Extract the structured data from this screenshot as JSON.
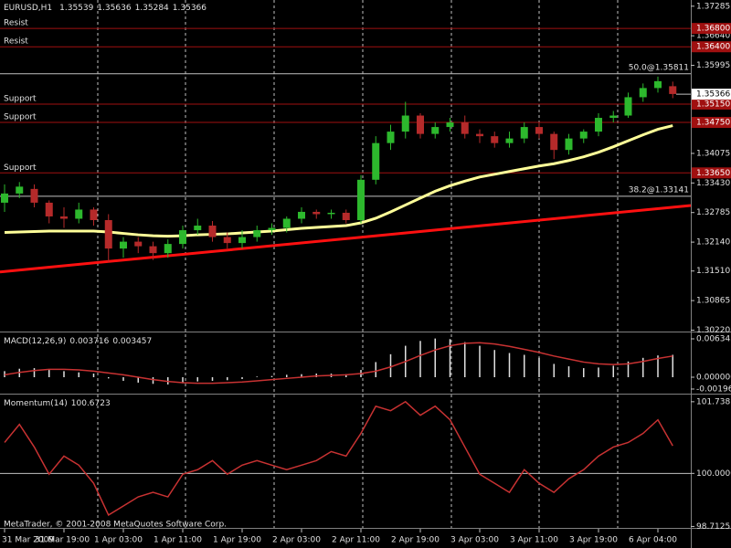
{
  "chart_data": {
    "type": "candlestick",
    "symbol": "EURUSD,H1",
    "quote": [
      1.35539,
      1.35636,
      1.35284,
      1.35366
    ],
    "categories": [
      "31 Mar 2009",
      null,
      null,
      null,
      "31 Mar 19:00",
      null,
      null,
      null,
      "1 Apr 03:00",
      null,
      null,
      null,
      "1 Apr 11:00",
      null,
      null,
      null,
      "1 Apr 19:00",
      null,
      null,
      null,
      "2 Apr 03:00",
      null,
      null,
      null,
      "2 Apr 11:00",
      null,
      null,
      null,
      "2 Apr 19:00",
      null,
      null,
      null,
      "3 Apr 03:00",
      null,
      null,
      null,
      "3 Apr 11:00",
      null,
      null,
      null,
      "3 Apr 19:00",
      null,
      null,
      null,
      "6 Apr 04:00",
      null
    ],
    "open": [
      1.33,
      1.332,
      1.333,
      1.33,
      1.327,
      1.3265,
      1.3285,
      1.3262,
      1.32,
      1.3215,
      1.3205,
      1.319,
      1.321,
      1.324,
      1.325,
      1.3225,
      1.3212,
      1.3225,
      1.324,
      1.3245,
      1.3265,
      1.328,
      1.3275,
      1.3278,
      1.3262,
      1.335,
      1.343,
      1.3455,
      1.349,
      1.345,
      1.3465,
      1.3475,
      1.345,
      1.3445,
      1.343,
      1.344,
      1.3465,
      1.345,
      1.3415,
      1.344,
      1.3455,
      1.3485,
      1.349,
      1.353,
      1.355,
      1.3554
    ],
    "high": [
      1.334,
      1.3345,
      1.334,
      1.3305,
      1.329,
      1.33,
      1.329,
      1.3275,
      1.3225,
      1.3225,
      1.3215,
      1.322,
      1.325,
      1.3265,
      1.326,
      1.3235,
      1.324,
      1.325,
      1.3255,
      1.327,
      1.329,
      1.3285,
      1.3285,
      1.3285,
      1.336,
      1.3445,
      1.347,
      1.352,
      1.3495,
      1.3475,
      1.3485,
      1.349,
      1.346,
      1.3455,
      1.3455,
      1.3475,
      1.3475,
      1.3455,
      1.345,
      1.346,
      1.3495,
      1.35,
      1.354,
      1.356,
      1.3575,
      1.3564
    ],
    "low": [
      1.328,
      1.331,
      1.329,
      1.3255,
      1.3245,
      1.3255,
      1.325,
      1.317,
      1.318,
      1.319,
      1.3175,
      1.318,
      1.32,
      1.323,
      1.3215,
      1.32,
      1.32,
      1.3215,
      1.323,
      1.3235,
      1.3255,
      1.3265,
      1.3265,
      1.3255,
      1.3255,
      1.334,
      1.3415,
      1.344,
      1.344,
      1.344,
      1.3455,
      1.344,
      1.343,
      1.342,
      1.342,
      1.343,
      1.344,
      1.3395,
      1.3405,
      1.343,
      1.3445,
      1.3475,
      1.3485,
      1.352,
      1.354,
      1.3528
    ],
    "close": [
      1.332,
      1.3335,
      1.33,
      1.327,
      1.3265,
      1.3285,
      1.3262,
      1.32,
      1.3215,
      1.3205,
      1.319,
      1.321,
      1.324,
      1.325,
      1.3225,
      1.3212,
      1.3225,
      1.324,
      1.3245,
      1.3265,
      1.328,
      1.3275,
      1.3278,
      1.3262,
      1.335,
      1.343,
      1.3455,
      1.349,
      1.345,
      1.3465,
      1.3475,
      1.345,
      1.3445,
      1.343,
      1.344,
      1.3465,
      1.345,
      1.3415,
      1.344,
      1.3455,
      1.3485,
      1.349,
      1.353,
      1.355,
      1.3565,
      1.3537
    ],
    "up_color": "#2db82d",
    "down_color": "#b52a2a",
    "ylim": [
      1.3021,
      1.3742
    ],
    "yticks": [
      1.37285,
      {
        "value": 1.3664,
        "label": "1.36640"
      },
      1.35995,
      1.34075,
      {
        "value": 1.3343,
        "label": "1.33430"
      },
      1.32785,
      {
        "value": 1.3214,
        "label": "1.32140"
      },
      {
        "value": 1.3151,
        "label": "1.31510"
      },
      1.30865,
      {
        "value": 1.3022,
        "label": "1.30220"
      }
    ],
    "current_price": 1.35366,
    "moving_average": {
      "color": "#ffff99",
      "values": [
        1.3235,
        1.3236,
        1.3237,
        1.3238,
        1.3238,
        1.3238,
        1.3238,
        1.3236,
        1.3233,
        1.323,
        1.3228,
        1.3227,
        1.3228,
        1.323,
        1.3231,
        1.3232,
        1.3234,
        1.3236,
        1.3238,
        1.3241,
        1.3244,
        1.3246,
        1.3248,
        1.325,
        1.3256,
        1.3266,
        1.328,
        1.3295,
        1.331,
        1.3325,
        1.3337,
        1.3347,
        1.3356,
        1.3362,
        1.3368,
        1.3374,
        1.338,
        1.3385,
        1.3392,
        1.34,
        1.341,
        1.3422,
        1.3435,
        1.3448,
        1.346,
        1.3468
      ]
    },
    "trendline": {
      "color": "#ff1010",
      "values": [
        1.315,
        1.329
      ]
    },
    "level_color": "#a01010",
    "levels": [
      {
        "name": "Resist",
        "value": 1.368,
        "value_label": "1.36800"
      },
      {
        "name": "Resist",
        "value": 1.364,
        "value_label": "1.36400"
      },
      {
        "name": "Support",
        "value": 1.3515,
        "value_label": "1.35150"
      },
      {
        "name": "Support",
        "value": 1.3475,
        "value_label": "1.34750"
      },
      {
        "name": "Support",
        "value": 1.3365,
        "value_label": "1.33650"
      }
    ],
    "fibo": [
      {
        "label": "50.0@1.35811",
        "value": 1.35811
      },
      {
        "label": "38.2@1.33141",
        "value": 1.33141
      }
    ],
    "macd": {
      "title": "MACD(12,26,9)",
      "readout": [
        0.003716,
        0.003457
      ],
      "histogram": [
        0.001,
        0.0014,
        0.0015,
        0.0012,
        0.001,
        0.0008,
        0.0006,
        -0.0002,
        -0.0006,
        -0.0009,
        -0.0011,
        -0.0012,
        -0.001,
        -0.0007,
        -0.0006,
        -0.0005,
        -0.0003,
        0.0001,
        0.0002,
        0.0004,
        0.0005,
        0.0006,
        0.0006,
        0.0005,
        0.0012,
        0.0025,
        0.0038,
        0.0052,
        0.006,
        0.0064,
        0.0063,
        0.0058,
        0.0052,
        0.0045,
        0.004,
        0.0037,
        0.0032,
        0.0022,
        0.0018,
        0.0015,
        0.0016,
        0.0019,
        0.0026,
        0.0032,
        0.0036,
        0.0037
      ],
      "signal": [
        0.0004,
        0.0008,
        0.0011,
        0.0013,
        0.0013,
        0.0012,
        0.001,
        0.0007,
        0.0004,
        0.0,
        -0.0004,
        -0.0007,
        -0.0009,
        -0.001,
        -0.001,
        -0.0009,
        -0.0008,
        -0.0006,
        -0.0004,
        -0.0002,
        0.0,
        0.0002,
        0.0003,
        0.0004,
        0.0006,
        0.001,
        0.0017,
        0.0026,
        0.0036,
        0.0045,
        0.0052,
        0.0056,
        0.0057,
        0.0055,
        0.0051,
        0.0046,
        0.0041,
        0.0035,
        0.003,
        0.0025,
        0.0022,
        0.0021,
        0.0022,
        0.0026,
        0.0031,
        0.0035
      ],
      "histogram_color": "#e0e0e0",
      "signal_color": "#c83232",
      "ylim": [
        -0.00257,
        0.00725
      ],
      "yticks": [
        0.006345,
        {
          "value": 0,
          "label": "0.000000"
        },
        -0.00196
      ]
    },
    "momentum": {
      "title": "Momentum(14)",
      "readout": 100.6723,
      "values": [
        100.75,
        101.19,
        100.64,
        99.98,
        100.42,
        100.2,
        99.76,
        98.99,
        99.21,
        99.43,
        99.54,
        99.43,
        99.98,
        100.09,
        100.31,
        99.98,
        100.2,
        100.31,
        100.2,
        100.09,
        100.2,
        100.31,
        100.53,
        100.42,
        100.97,
        101.63,
        101.52,
        101.74,
        101.41,
        101.63,
        101.3,
        100.64,
        99.98,
        99.76,
        99.54,
        100.09,
        99.76,
        99.54,
        99.87,
        100.09,
        100.42,
        100.64,
        100.75,
        100.97,
        101.3,
        100.67
      ],
      "color": "#c83232",
      "level": 100,
      "ylim": [
        98.7,
        101.89
      ],
      "yticks": [
        101.738,
        {
          "value": 100,
          "label": "100.0000"
        },
        98.7125
      ]
    },
    "footer": "MetaTrader, © 2001-2008 MetaQuotes Software Corp."
  }
}
